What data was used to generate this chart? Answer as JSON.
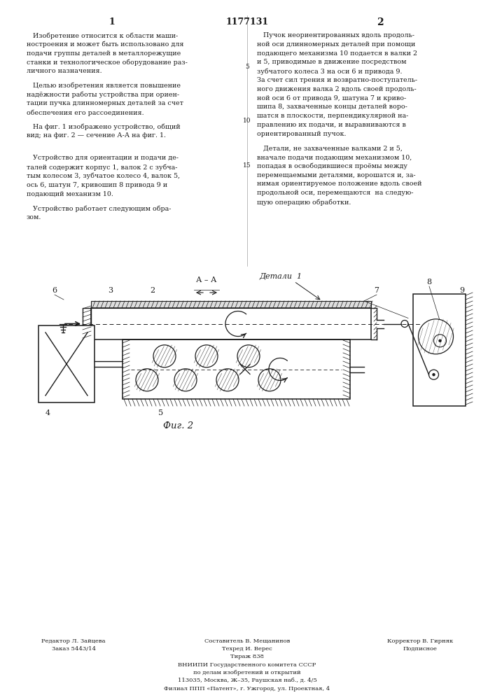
{
  "patent_number": "1177131",
  "col1_number": "1",
  "col2_number": "2",
  "col1_text_paragraphs": [
    [
      "   Изобретение относится к области маши-",
      "ностроения и может быть использовано для",
      "подачи группы деталей в металлорежущие",
      "станки и технологическое оборудование раз-",
      "личного назначения."
    ],
    [
      "   Целью изобретения является повышение",
      "надёжности работы устройства при ориен-",
      "тации пучка длинномерных деталей за счет",
      "обеспечения его рассоединения."
    ],
    [
      "   На фиг. 1 изображено устройство, общий",
      "вид; на фиг. 2 — сечение А-А на фиг. 1."
    ],
    [
      "   Устройство для ориентации и подачи де-",
      "талей содержит корпус 1, валок 2 с зубча-",
      "тым колесом 3, зубчатое колесо 4, валок 5,",
      "ось 6, шатун 7, кривошип 8 привода 9 и",
      "подающий механизм 10."
    ],
    [
      "   Устройство работает следующим обра-",
      "зом."
    ]
  ],
  "col2_text_paragraphs": [
    [
      "   Пучок неориентированных вдоль продоль-",
      "ной оси длинномерных деталей при помощи",
      "подающего механизма 10 подается в валки 2",
      "и 5, приводимые в движение посредством",
      "зубчатого колеса 3 на оси 6 и привода 9.",
      "За счет сил трения и возвратно-поступатель-",
      "ного движения валка 2 вдоль своей продоль-",
      "ной оси 6 от привода 9, шатуна 7 и криво-",
      "шипа 8, захваченные концы деталей воро-",
      "шатся в плоскости, перпендикулярной на-",
      "правлению их подачи, и выравниваются в",
      "ориентированный пучок."
    ],
    [
      "   Детали, не захваченные валками 2 и 5,",
      "вначале подачи подающим механизмом 10,",
      "попадая в освободившиеся проёмы между",
      "перемещаемыми деталями, ворошатся и, за-",
      "нимая ориентируемое положение вдоль своей",
      "продольной оси, перемещаются  на следую-",
      "щую операцию обработки."
    ]
  ],
  "fig_caption": "Фиг. 2",
  "editor_line": "Редактор Л. Зайцева",
  "order_line": "Заказ 5443/14",
  "composer_line": "Составитель В. Мещанинов",
  "tech_line": "Техред И. Верес",
  "circulation_line": "Тираж 838",
  "corrector_line": "Корректор В. Гирняк",
  "podp_line": "Подписное",
  "vnipi_line": "ВНИИПИ Государственного комитета СССР",
  "affairs_line": "по делам изобретений и открытий",
  "address_line": "113035, Москва, Ж–35, Раушская наб., д. 4/5",
  "filial_line": "Филиал ППП «Патент», г. Ужгород, ул. Проектная, 4",
  "bg_color": "#ffffff",
  "text_color": "#1a1a1a"
}
